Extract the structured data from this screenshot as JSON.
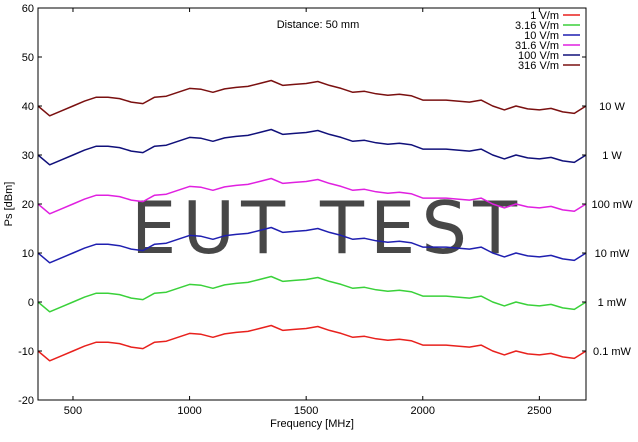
{
  "chart_data": {
    "type": "line",
    "title": "",
    "annotation": "Distance: 50 mm",
    "xlabel": "Frequency [MHz]",
    "ylabel": "Ps [dBm]",
    "xlim": [
      350,
      2700
    ],
    "ylim": [
      -20,
      60
    ],
    "x_ticks": [
      500,
      1000,
      1500,
      2000,
      2500
    ],
    "y_ticks": [
      -20,
      -10,
      0,
      10,
      20,
      30,
      40,
      50,
      60
    ],
    "grid": false,
    "legend_position": "top-right",
    "watermark": "EUT TEST",
    "x": [
      350,
      400,
      450,
      500,
      550,
      600,
      650,
      700,
      750,
      800,
      850,
      900,
      950,
      1000,
      1050,
      1100,
      1150,
      1200,
      1250,
      1300,
      1350,
      1400,
      1450,
      1500,
      1550,
      1600,
      1650,
      1700,
      1750,
      1800,
      1850,
      1900,
      1950,
      2000,
      2050,
      2100,
      2150,
      2200,
      2250,
      2300,
      2350,
      2400,
      2450,
      2500,
      2550,
      2600,
      2650,
      2700
    ],
    "series": [
      {
        "name": "1 V/m",
        "color": "#e8211d",
        "end_label": "0.1 mW",
        "values": [
          -10.0,
          -12.0,
          -11.0,
          -10.0,
          -9.0,
          -8.2,
          -8.2,
          -8.5,
          -9.2,
          -9.5,
          -8.2,
          -8.0,
          -7.2,
          -6.4,
          -6.6,
          -7.2,
          -6.5,
          -6.2,
          -6.0,
          -5.4,
          -4.8,
          -5.8,
          -5.6,
          -5.4,
          -5.0,
          -5.8,
          -6.4,
          -7.2,
          -7.0,
          -7.5,
          -7.8,
          -7.6,
          -7.9,
          -8.8,
          -8.8,
          -8.8,
          -9.0,
          -9.2,
          -8.8,
          -10.0,
          -10.8,
          -10.0,
          -10.6,
          -10.8,
          -10.5,
          -11.2,
          -11.5,
          -10.0
        ]
      },
      {
        "name": "3.16 V/m",
        "color": "#3ad13a",
        "end_label": "1 mW",
        "values": [
          0.0,
          -2.0,
          -1.0,
          0.0,
          1.0,
          1.8,
          1.8,
          1.5,
          0.8,
          0.5,
          1.8,
          2.0,
          2.8,
          3.6,
          3.4,
          2.8,
          3.5,
          3.8,
          4.0,
          4.6,
          5.2,
          4.2,
          4.4,
          4.6,
          5.0,
          4.2,
          3.6,
          2.8,
          3.0,
          2.5,
          2.2,
          2.4,
          2.1,
          1.2,
          1.2,
          1.2,
          1.0,
          0.8,
          1.2,
          0.0,
          -0.8,
          0.0,
          -0.6,
          -0.8,
          -0.5,
          -1.2,
          -1.5,
          0.0
        ]
      },
      {
        "name": "10 V/m",
        "color": "#1f1fb0",
        "end_label": "10 mW",
        "values": [
          10.0,
          8.0,
          9.0,
          10.0,
          11.0,
          11.8,
          11.8,
          11.5,
          10.8,
          10.5,
          11.8,
          12.0,
          12.8,
          13.6,
          13.4,
          12.8,
          13.5,
          13.8,
          14.0,
          14.6,
          15.2,
          14.2,
          14.4,
          14.6,
          15.0,
          14.2,
          13.6,
          12.8,
          13.0,
          12.5,
          12.2,
          12.4,
          12.1,
          11.2,
          11.2,
          11.2,
          11.0,
          10.8,
          11.2,
          10.0,
          9.2,
          10.0,
          9.4,
          9.2,
          9.5,
          8.8,
          8.5,
          10.0
        ]
      },
      {
        "name": "31.6 V/m",
        "color": "#e020e0",
        "end_label": "100 mW",
        "values": [
          20.0,
          18.0,
          19.0,
          20.0,
          21.0,
          21.8,
          21.8,
          21.5,
          20.8,
          20.5,
          21.8,
          22.0,
          22.8,
          23.6,
          23.4,
          22.8,
          23.5,
          23.8,
          24.0,
          24.6,
          25.2,
          24.2,
          24.4,
          24.6,
          25.0,
          24.2,
          23.6,
          22.8,
          23.0,
          22.5,
          22.2,
          22.4,
          22.1,
          21.2,
          21.2,
          21.2,
          21.0,
          20.8,
          21.2,
          20.0,
          19.2,
          20.0,
          19.4,
          19.2,
          19.5,
          18.8,
          18.5,
          20.0
        ]
      },
      {
        "name": "100 V/m",
        "color": "#10107a",
        "end_label": "1 W",
        "values": [
          30.0,
          28.0,
          29.0,
          30.0,
          31.0,
          31.8,
          31.8,
          31.5,
          30.8,
          30.5,
          31.8,
          32.0,
          32.8,
          33.6,
          33.4,
          32.8,
          33.5,
          33.8,
          34.0,
          34.6,
          35.2,
          34.2,
          34.4,
          34.6,
          35.0,
          34.2,
          33.6,
          32.8,
          33.0,
          32.5,
          32.2,
          32.4,
          32.1,
          31.2,
          31.2,
          31.2,
          31.0,
          30.8,
          31.2,
          30.0,
          29.2,
          30.0,
          29.4,
          29.2,
          29.5,
          28.8,
          28.5,
          30.0
        ]
      },
      {
        "name": "316 V/m",
        "color": "#7a1010",
        "end_label": "10 W",
        "values": [
          40.0,
          38.0,
          39.0,
          40.0,
          41.0,
          41.8,
          41.8,
          41.5,
          40.8,
          40.5,
          41.8,
          42.0,
          42.8,
          43.6,
          43.4,
          42.8,
          43.5,
          43.8,
          44.0,
          44.6,
          45.2,
          44.2,
          44.4,
          44.6,
          45.0,
          44.2,
          43.6,
          42.8,
          43.0,
          42.5,
          42.2,
          42.4,
          42.1,
          41.2,
          41.2,
          41.2,
          41.0,
          40.8,
          41.2,
          40.0,
          39.2,
          40.0,
          39.4,
          39.2,
          39.5,
          38.8,
          38.5,
          40.0
        ]
      }
    ]
  }
}
